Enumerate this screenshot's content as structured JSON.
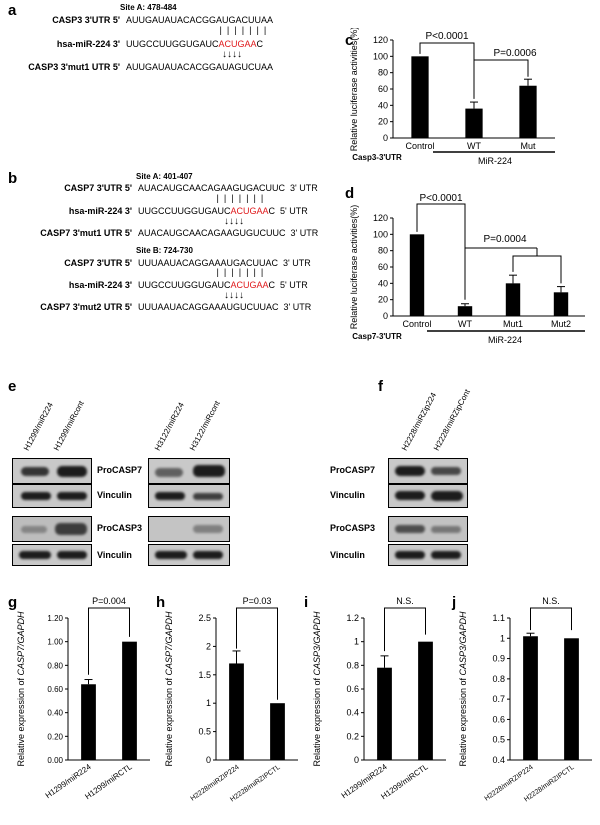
{
  "panel_letters": {
    "a": "a",
    "b": "b",
    "c": "c",
    "d": "d",
    "e": "e",
    "f": "f",
    "g": "g",
    "h": "h",
    "i": "i",
    "j": "j"
  },
  "panel_a": {
    "site": "Site A: 478-484",
    "rows": [
      {
        "label": "CASP3 3'UTR  5'",
        "pre": "AUUGAUAUACACGGAUGACUUAA",
        "red": "",
        "post": ""
      },
      {
        "label": "hsa-miR-224  3'",
        "pre": "UUGCCUUGGUGAUC",
        "red": "ACUGAA",
        "post": "C"
      },
      {
        "label": "CASP3 3'mut1 UTR  5'",
        "pre": "AUUGAUAUACACGGAUAGUCUAA",
        "red": "",
        "post": ""
      }
    ]
  },
  "panel_b": {
    "site_a": "Site A: 401-407",
    "site_b": "Site B: 724-730",
    "rows": [
      {
        "label": "CASP7 3'UTR  5'",
        "pre": "AUACAUGCAACAGAAGUGACUUC  3' UTR",
        "red": "",
        "post": ""
      },
      {
        "label": "hsa-miR-224  3'",
        "pre": "UUGCCUUGGUGAUC",
        "red": "ACUGAA",
        "post": "C  5' UTR"
      },
      {
        "label": "CASP7 3'mut1 UTR  5'",
        "pre": "AUACAUGCAACAGAAGUGUCUUC  3' UTR",
        "red": "",
        "post": ""
      },
      {
        "label": "CASP7 3'UTR  5'",
        "pre": "UUUAAUACAGGAAAUGACUUAC  3' UTR",
        "red": "",
        "post": ""
      },
      {
        "label": "hsa-miR-224  3'",
        "pre": "UUGCCUUGGUGAUC",
        "red": "ACUGAA",
        "post": "C  5' UTR"
      },
      {
        "label": "CASP7 3'mut2 UTR  5'",
        "pre": "UUUAAUACAGGAAAUGUCUUAC  3' UTR",
        "red": "",
        "post": ""
      }
    ]
  },
  "panel_e": {
    "lanes_left": [
      "H1299/miR224",
      "H1299/miRcont"
    ],
    "lanes_right": [
      "H3122/miR224",
      "H3122/miRcont"
    ],
    "labels": [
      "ProCASP7",
      "Vinculin",
      "ProCASP3",
      "Vinculin"
    ]
  },
  "panel_f": {
    "lanes": [
      "H2228/miRZip224",
      "H2228/miRZipCont"
    ],
    "labels": [
      "ProCASP7",
      "Vinculin",
      "ProCASP3",
      "Vinculin"
    ]
  },
  "chart_data": [
    {
      "id": "c",
      "type": "bar",
      "categories": [
        "Control",
        "WT",
        "Mut"
      ],
      "values": [
        100,
        36,
        64
      ],
      "errors": [
        0,
        8,
        8
      ],
      "ylabel": "Relative luciferase activities(%)",
      "ylim": [
        0,
        120
      ],
      "yticks": [
        "0",
        "20",
        "40",
        "60",
        "80",
        "100",
        "120"
      ],
      "group_label": "MiR-224",
      "row_label": "Casp3-3'UTR",
      "annotations": [
        "P<0.0001",
        "P=0.0006"
      ]
    },
    {
      "id": "d",
      "type": "bar",
      "categories": [
        "Control",
        "WT",
        "Mut1",
        "Mut2"
      ],
      "values": [
        100,
        12,
        40,
        29
      ],
      "errors": [
        0,
        3,
        10,
        7
      ],
      "ylabel": "Relative luciferase activities(%)",
      "ylim": [
        0,
        120
      ],
      "yticks": [
        "0",
        "20",
        "40",
        "60",
        "80",
        "100",
        "120"
      ],
      "group_label": "MiR-224",
      "row_label": "Casp7-3'UTR",
      "annotations": [
        "P<0.0001",
        "P=0.0004"
      ]
    },
    {
      "id": "g",
      "type": "bar",
      "categories": [
        "H1299/miR224",
        "H1299/miRCTL"
      ],
      "values": [
        0.64,
        1.0
      ],
      "errors": [
        0.04,
        0
      ],
      "ylabel": "Relative expression of CASP7/GAPDH",
      "ylim": [
        0,
        1.2
      ],
      "yticks": [
        "0.00",
        "0.20",
        "0.40",
        "0.60",
        "0.80",
        "1.00",
        "1.20"
      ],
      "annotations": [
        "P=0.004"
      ]
    },
    {
      "id": "h",
      "type": "bar",
      "categories": [
        "H2228/miRZIP224",
        "H2228/miRZIPCTL"
      ],
      "values": [
        1.7,
        1.0
      ],
      "errors": [
        0.22,
        0
      ],
      "ylabel": "Relative expression of CASP7/GAPDH",
      "ylim": [
        0,
        2.5
      ],
      "yticks": [
        "0",
        "0.5",
        "1",
        "1.5",
        "2",
        "2.5"
      ],
      "annotations": [
        "P=0.03"
      ]
    },
    {
      "id": "i",
      "type": "bar",
      "categories": [
        "H1299/miR224",
        "H1299/miRCTL"
      ],
      "values": [
        0.78,
        1.0
      ],
      "errors": [
        0.1,
        0
      ],
      "ylabel": "Relative expression of CASP3/GAPDH",
      "ylim": [
        0,
        1.2
      ],
      "yticks": [
        "0",
        "0.2",
        "0.4",
        "0.6",
        "0.8",
        "1",
        "1.2"
      ],
      "annotations": [
        "N.S."
      ]
    },
    {
      "id": "j",
      "type": "bar",
      "categories": [
        "H2228/miRZIP224",
        "H2228/miRZIPCTL"
      ],
      "values": [
        1.01,
        1.0
      ],
      "errors": [
        0.015,
        0
      ],
      "ylabel": "Relative expression of CASP3/GAPDH",
      "ylim": [
        0.4,
        1.1
      ],
      "yticks": [
        "0.4",
        "0.5",
        "0.6",
        "0.7",
        "0.8",
        "0.9",
        "1",
        "1.1"
      ],
      "annotations": [
        "N.S."
      ]
    }
  ]
}
